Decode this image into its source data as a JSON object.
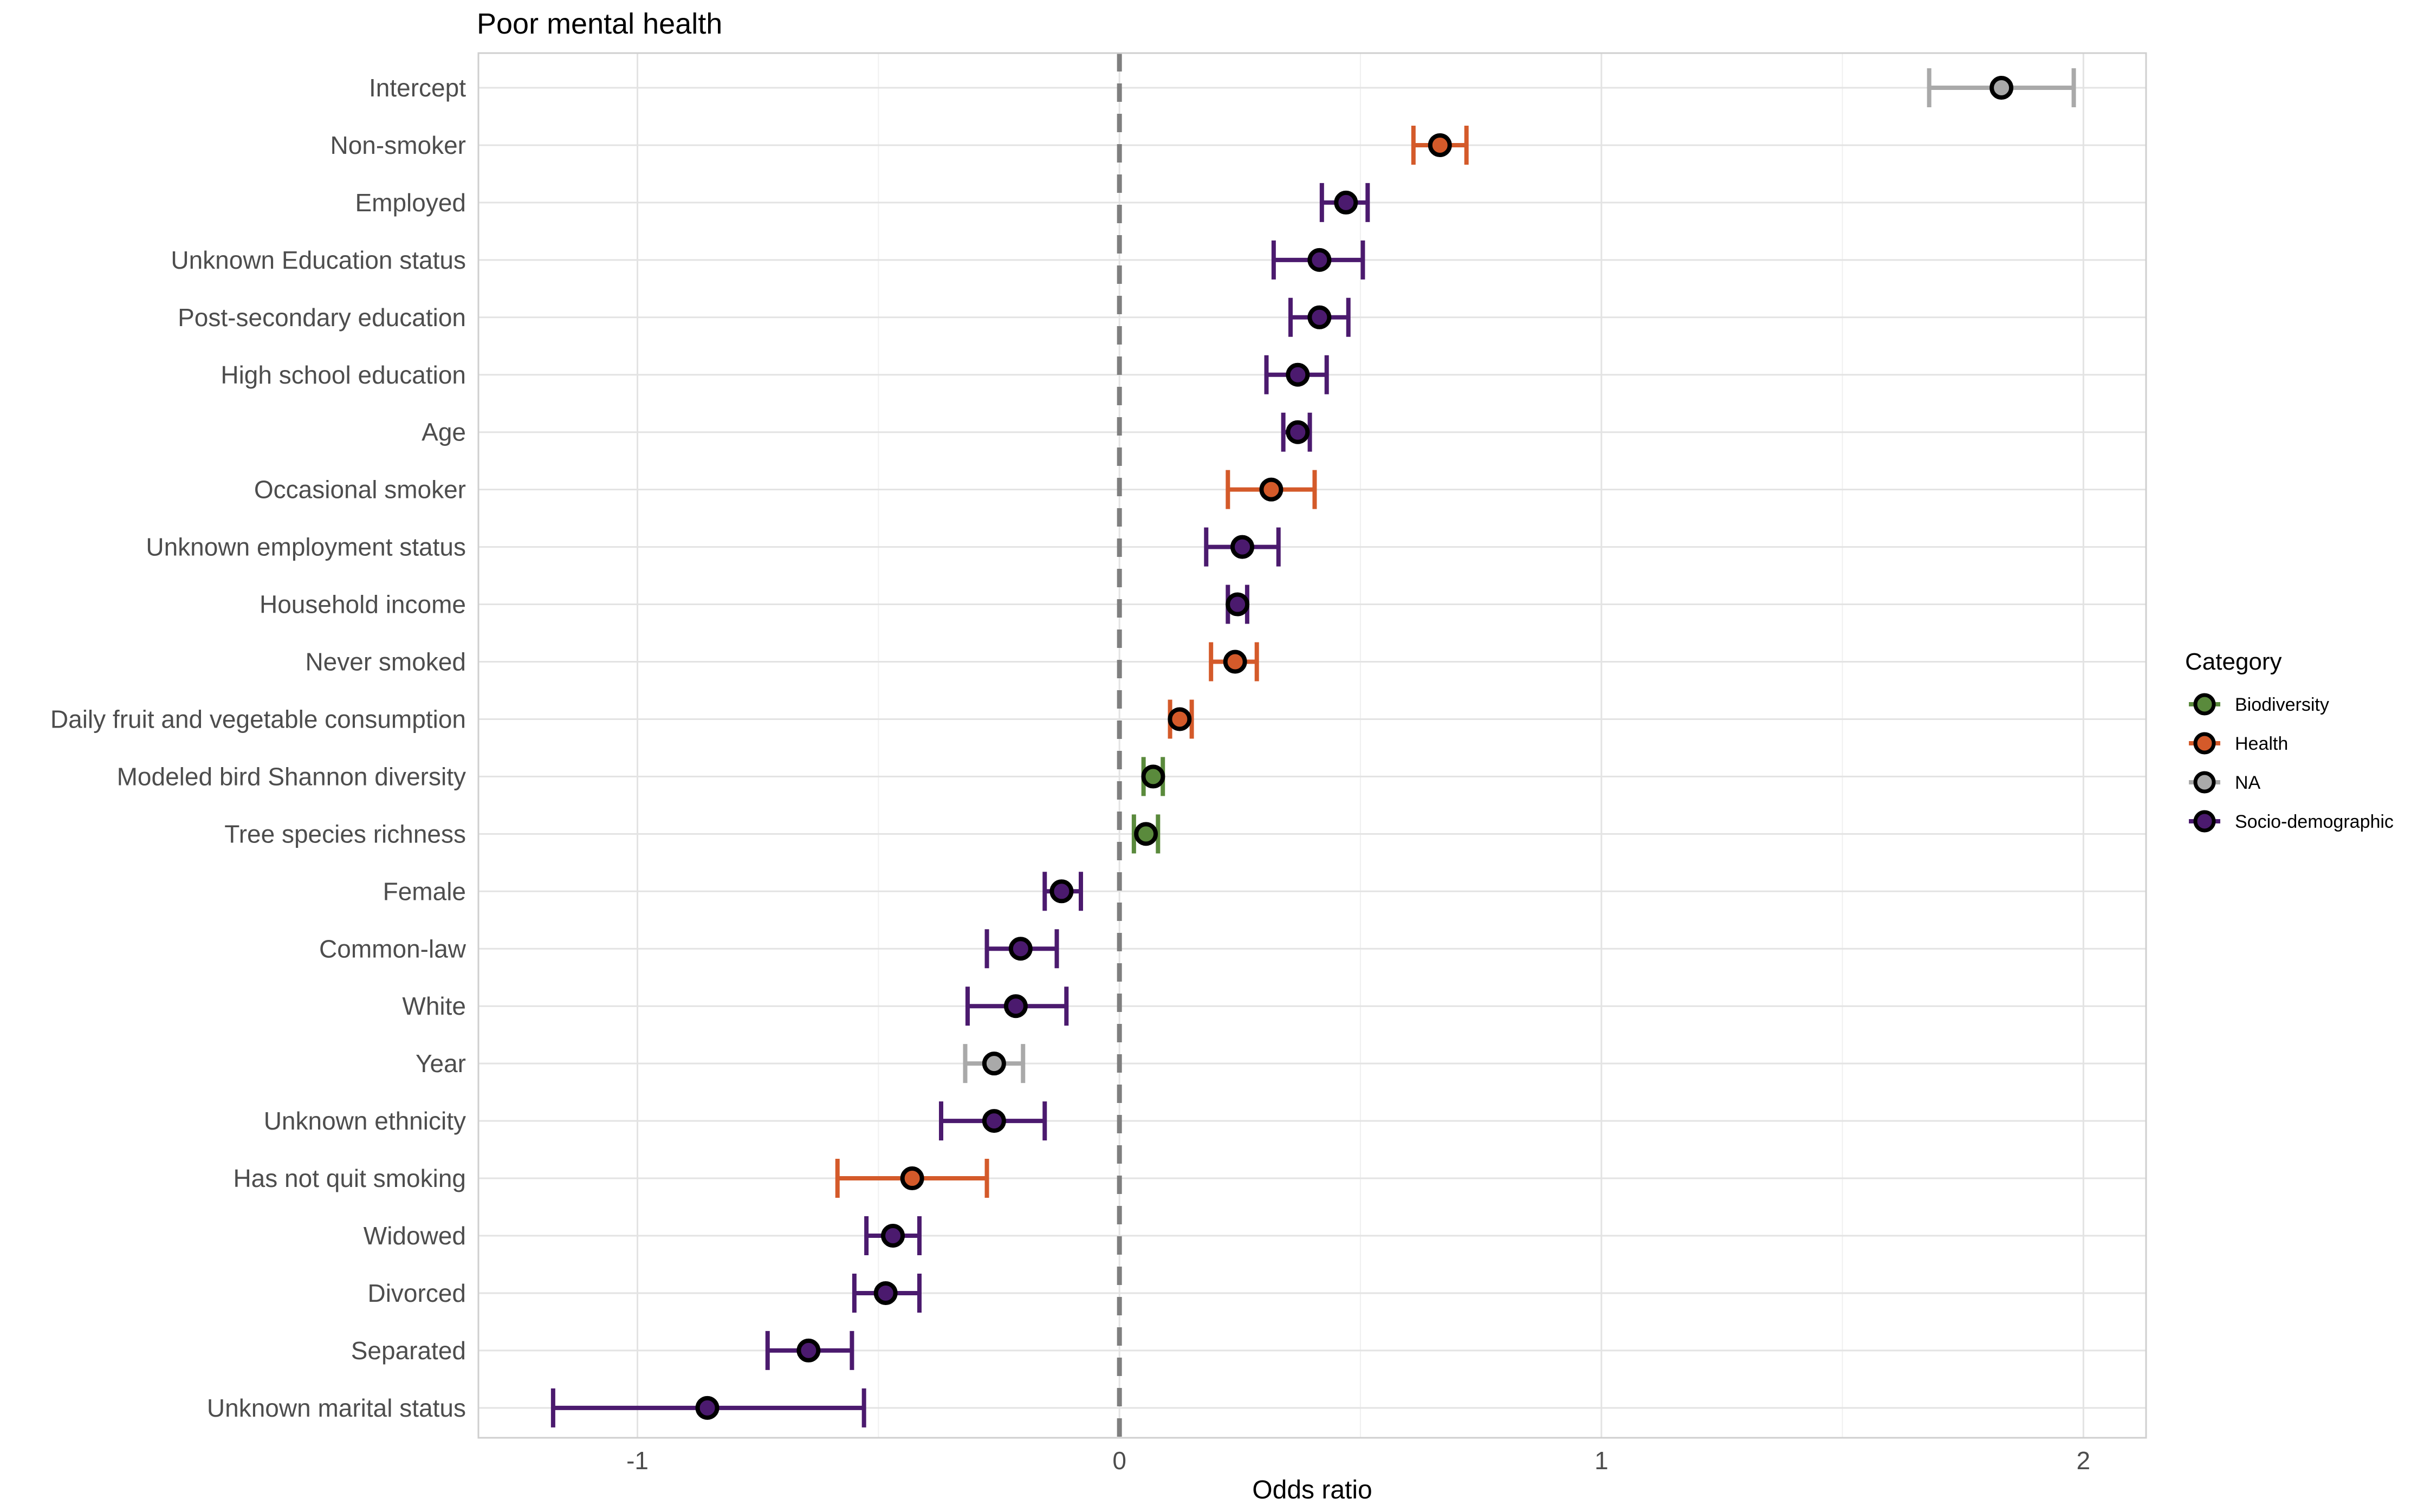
{
  "chart_data": {
    "type": "scatter",
    "title": "Poor mental health",
    "xlabel": "Odds ratio",
    "ylabel": "",
    "xlim": [
      -1.33,
      2.13
    ],
    "x_ticks": [
      -1,
      0,
      1,
      2
    ],
    "x_tick_labels": [
      "-1",
      "0",
      "1",
      "2"
    ],
    "reference_line": 0,
    "grid": true,
    "legend": {
      "title": "Category",
      "position": "right",
      "entries": [
        {
          "name": "Biodiversity",
          "color": "#5a8a3c"
        },
        {
          "name": "Health",
          "color": "#d45a2a"
        },
        {
          "name": "NA",
          "color": "#a9a9a9"
        },
        {
          "name": "Socio-demographic",
          "color": "#4b1a6e"
        }
      ]
    },
    "rows": [
      {
        "label": "Intercept",
        "estimate": 1.83,
        "low": 1.68,
        "high": 1.98,
        "category": "NA"
      },
      {
        "label": "Non-smoker",
        "estimate": 0.665,
        "low": 0.61,
        "high": 0.72,
        "category": "Health"
      },
      {
        "label": "Employed",
        "estimate": 0.47,
        "low": 0.42,
        "high": 0.515,
        "category": "Socio-demographic"
      },
      {
        "label": "Unknown Education status",
        "estimate": 0.415,
        "low": 0.32,
        "high": 0.505,
        "category": "Socio-demographic"
      },
      {
        "label": "Post-secondary education",
        "estimate": 0.415,
        "low": 0.355,
        "high": 0.475,
        "category": "Socio-demographic"
      },
      {
        "label": "High school education",
        "estimate": 0.37,
        "low": 0.305,
        "high": 0.43,
        "category": "Socio-demographic"
      },
      {
        "label": "Age",
        "estimate": 0.37,
        "low": 0.34,
        "high": 0.395,
        "category": "Socio-demographic"
      },
      {
        "label": "Occasional smoker",
        "estimate": 0.315,
        "low": 0.225,
        "high": 0.405,
        "category": "Health"
      },
      {
        "label": "Unknown employment status",
        "estimate": 0.255,
        "low": 0.18,
        "high": 0.33,
        "category": "Socio-demographic"
      },
      {
        "label": "Household income",
        "estimate": 0.245,
        "low": 0.225,
        "high": 0.265,
        "category": "Socio-demographic"
      },
      {
        "label": "Never smoked",
        "estimate": 0.24,
        "low": 0.19,
        "high": 0.285,
        "category": "Health"
      },
      {
        "label": "Daily fruit and vegetable consumption",
        "estimate": 0.125,
        "low": 0.105,
        "high": 0.15,
        "category": "Health"
      },
      {
        "label": "Modeled bird Shannon diversity",
        "estimate": 0.07,
        "low": 0.05,
        "high": 0.09,
        "category": "Biodiversity"
      },
      {
        "label": "Tree species richness",
        "estimate": 0.055,
        "low": 0.03,
        "high": 0.08,
        "category": "Biodiversity"
      },
      {
        "label": "Female",
        "estimate": -0.12,
        "low": -0.155,
        "high": -0.08,
        "category": "Socio-demographic"
      },
      {
        "label": "Common-law",
        "estimate": -0.205,
        "low": -0.275,
        "high": -0.13,
        "category": "Socio-demographic"
      },
      {
        "label": "White",
        "estimate": -0.215,
        "low": -0.315,
        "high": -0.11,
        "category": "Socio-demographic"
      },
      {
        "label": "Year",
        "estimate": -0.26,
        "low": -0.32,
        "high": -0.2,
        "category": "NA"
      },
      {
        "label": "Unknown ethnicity",
        "estimate": -0.26,
        "low": -0.37,
        "high": -0.155,
        "category": "Socio-demographic"
      },
      {
        "label": "Has not quit smoking",
        "estimate": -0.43,
        "low": -0.585,
        "high": -0.275,
        "category": "Health"
      },
      {
        "label": "Widowed",
        "estimate": -0.47,
        "low": -0.525,
        "high": -0.415,
        "category": "Socio-demographic"
      },
      {
        "label": "Divorced",
        "estimate": -0.485,
        "low": -0.55,
        "high": -0.415,
        "category": "Socio-demographic"
      },
      {
        "label": "Separated",
        "estimate": -0.645,
        "low": -0.73,
        "high": -0.555,
        "category": "Socio-demographic"
      },
      {
        "label": "Unknown marital status",
        "estimate": -0.855,
        "low": -1.175,
        "high": -0.53,
        "category": "Socio-demographic"
      }
    ]
  }
}
